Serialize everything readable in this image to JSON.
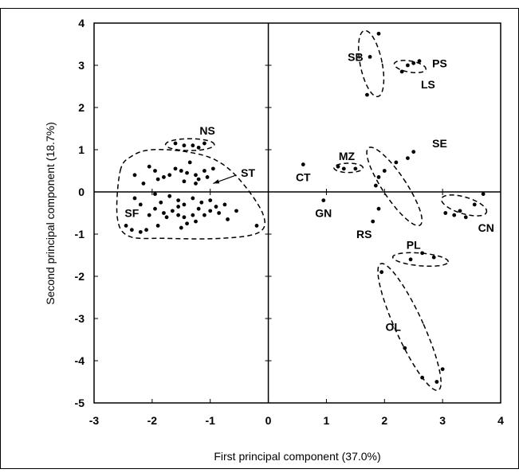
{
  "chart_data": {
    "type": "scatter",
    "title": "",
    "xlabel": "First principal component (37.0%)",
    "ylabel": "Second principal component (18.7%)",
    "xlim": [
      -3,
      4
    ],
    "ylim": [
      -5,
      4
    ],
    "xticks": [
      -3,
      -2,
      -1,
      0,
      1,
      2,
      3,
      4
    ],
    "yticks": [
      -5,
      -4,
      -3,
      -2,
      -1,
      0,
      1,
      2,
      3,
      4
    ],
    "grid": false,
    "legend": "none",
    "points": [
      [
        -1.6,
        1.15
      ],
      [
        -1.45,
        1.1
      ],
      [
        -1.3,
        1.1
      ],
      [
        -1.1,
        1.15
      ],
      [
        -1.2,
        1.05
      ],
      [
        -2.3,
        0.4
      ],
      [
        -2.05,
        0.6
      ],
      [
        -1.95,
        0.5
      ],
      [
        -1.8,
        0.35
      ],
      [
        -1.7,
        0.4
      ],
      [
        -1.6,
        0.55
      ],
      [
        -1.5,
        0.5
      ],
      [
        -1.4,
        0.45
      ],
      [
        -1.35,
        0.7
      ],
      [
        -1.25,
        0.4
      ],
      [
        -1.2,
        0.3
      ],
      [
        -1.1,
        0.5
      ],
      [
        -1.05,
        0.35
      ],
      [
        -0.95,
        0.55
      ],
      [
        -1.45,
        0.25
      ],
      [
        -1.25,
        0.2
      ],
      [
        -1.9,
        0.3
      ],
      [
        -2.15,
        0.2
      ],
      [
        -2.3,
        -0.15
      ],
      [
        -2.2,
        -0.3
      ],
      [
        -1.95,
        -0.05
      ],
      [
        -1.85,
        -0.25
      ],
      [
        -1.7,
        -0.1
      ],
      [
        -1.55,
        -0.2
      ],
      [
        -1.45,
        -0.3
      ],
      [
        -1.3,
        -0.15
      ],
      [
        -1.15,
        -0.25
      ],
      [
        -1.0,
        -0.2
      ],
      [
        -0.9,
        -0.35
      ],
      [
        -0.75,
        -0.3
      ],
      [
        -2.45,
        -0.8
      ],
      [
        -2.35,
        -0.9
      ],
      [
        -2.2,
        -0.95
      ],
      [
        -2.05,
        -0.55
      ],
      [
        -1.95,
        -0.4
      ],
      [
        -1.8,
        -0.5
      ],
      [
        -1.75,
        -0.6
      ],
      [
        -1.65,
        -0.45
      ],
      [
        -1.55,
        -0.55
      ],
      [
        -1.45,
        -0.6
      ],
      [
        -1.4,
        -0.75
      ],
      [
        -1.3,
        -0.55
      ],
      [
        -1.25,
        -0.7
      ],
      [
        -1.2,
        -0.4
      ],
      [
        -1.1,
        -0.55
      ],
      [
        -1.0,
        -0.45
      ],
      [
        -0.85,
        -0.5
      ],
      [
        -0.7,
        -0.65
      ],
      [
        -0.55,
        -0.45
      ],
      [
        -1.5,
        -0.85
      ],
      [
        -1.9,
        -0.8
      ],
      [
        -0.2,
        -0.8
      ],
      [
        -1.55,
        -0.35
      ],
      [
        -2.1,
        -0.9
      ],
      [
        0.6,
        0.65
      ],
      [
        0.95,
        -0.2
      ],
      [
        1.2,
        0.6
      ],
      [
        1.3,
        0.55
      ],
      [
        1.5,
        0.55
      ],
      [
        1.75,
        3.2
      ],
      [
        1.9,
        3.75
      ],
      [
        1.7,
        2.3
      ],
      [
        2.4,
        3.0
      ],
      [
        2.5,
        3.05
      ],
      [
        2.6,
        3.1
      ],
      [
        2.3,
        2.85
      ],
      [
        1.85,
        0.15
      ],
      [
        1.9,
        0.35
      ],
      [
        2.0,
        0.5
      ],
      [
        2.2,
        0.7
      ],
      [
        2.4,
        0.8
      ],
      [
        2.5,
        0.95
      ],
      [
        1.9,
        -0.4
      ],
      [
        1.8,
        -0.7
      ],
      [
        2.65,
        -1.45
      ],
      [
        2.85,
        -1.55
      ],
      [
        2.45,
        -1.6
      ],
      [
        3.05,
        -0.5
      ],
      [
        3.2,
        -0.55
      ],
      [
        3.3,
        -0.45
      ],
      [
        3.4,
        -0.6
      ],
      [
        3.55,
        -0.3
      ],
      [
        3.7,
        -0.05
      ],
      [
        1.95,
        -1.9
      ],
      [
        2.35,
        -3.7
      ],
      [
        2.65,
        -4.4
      ],
      [
        2.9,
        -4.5
      ],
      [
        3.0,
        -4.2
      ]
    ],
    "groups": [
      {
        "label": "NS",
        "label_xy": [
          -1.05,
          1.45
        ]
      },
      {
        "label": "ST",
        "label_xy": [
          -0.35,
          0.45
        ]
      },
      {
        "label": "SF",
        "label_xy": [
          -2.35,
          -0.5
        ]
      },
      {
        "label": "CT",
        "label_xy": [
          0.6,
          0.35
        ]
      },
      {
        "label": "GN",
        "label_xy": [
          0.95,
          -0.5
        ]
      },
      {
        "label": "MZ",
        "label_xy": [
          1.35,
          0.85
        ]
      },
      {
        "label": "SB",
        "label_xy": [
          1.5,
          3.2
        ]
      },
      {
        "label": "PS",
        "label_xy": [
          2.95,
          3.05
        ]
      },
      {
        "label": "LS",
        "label_xy": [
          2.75,
          2.55
        ]
      },
      {
        "label": "SE",
        "label_xy": [
          2.95,
          1.15
        ]
      },
      {
        "label": "RS",
        "label_xy": [
          1.65,
          -1.0
        ]
      },
      {
        "label": "PL",
        "label_xy": [
          2.5,
          -1.25
        ]
      },
      {
        "label": "CN",
        "label_xy": [
          3.75,
          -0.85
        ]
      },
      {
        "label": "OL",
        "label_xy": [
          2.15,
          -3.2
        ]
      }
    ],
    "annotations": [
      {
        "type": "arrow",
        "from": [
          -0.55,
          0.4
        ],
        "to": [
          -0.95,
          0.2
        ]
      }
    ]
  }
}
